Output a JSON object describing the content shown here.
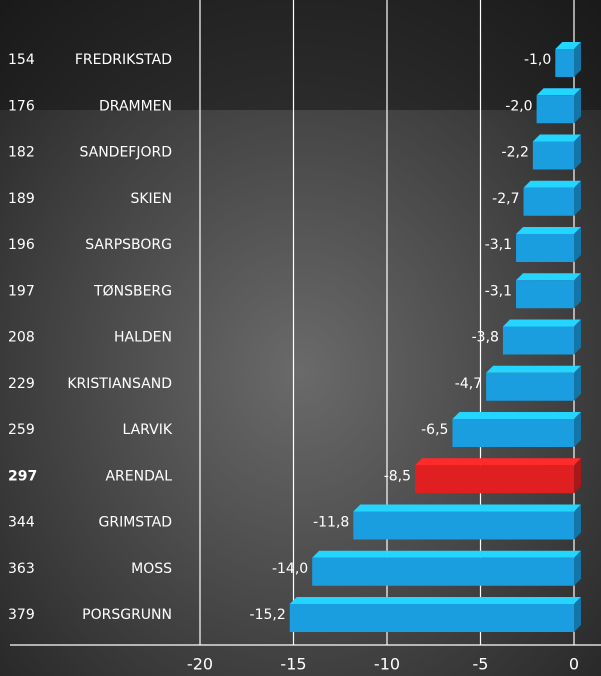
{
  "chart_data": {
    "type": "bar",
    "ranks": [
      "154",
      "176",
      "182",
      "189",
      "196",
      "197",
      "208",
      "229",
      "259",
      "297",
      "344",
      "363",
      "379"
    ],
    "categories": [
      "FREDRIKSTAD",
      "DRAMMEN",
      "SANDEFJORD",
      "SKIEN",
      "SARPSBORG",
      "TØNSBERG",
      "HALDEN",
      "KRISTIANSAND",
      "LARVIK",
      "ARENDAL",
      "GRIMSTAD",
      "MOSS",
      "PORSGRUNN"
    ],
    "values": [
      -1.0,
      -2.0,
      -2.2,
      -2.7,
      -3.1,
      -3.1,
      -3.8,
      -4.7,
      -6.5,
      -8.5,
      -11.8,
      -14.0,
      -15.2
    ],
    "value_labels": [
      "-1,0",
      "-2,0",
      "-2,2",
      "-2,7",
      "-3,1",
      "-3,1",
      "-3,8",
      "-4,7",
      "-6,5",
      "-8,5",
      "-11,8",
      "-14,0",
      "-15,2"
    ],
    "colors": [
      "#1a9ee0",
      "#1a9ee0",
      "#1a9ee0",
      "#1a9ee0",
      "#1a9ee0",
      "#1a9ee0",
      "#1a9ee0",
      "#1a9ee0",
      "#1a9ee0",
      "#e02020",
      "#1a9ee0",
      "#1a9ee0",
      "#1a9ee0"
    ],
    "xlim": [
      -20,
      0
    ],
    "xticks": [
      -20,
      -15,
      -10,
      -5,
      0
    ],
    "grid": true
  }
}
